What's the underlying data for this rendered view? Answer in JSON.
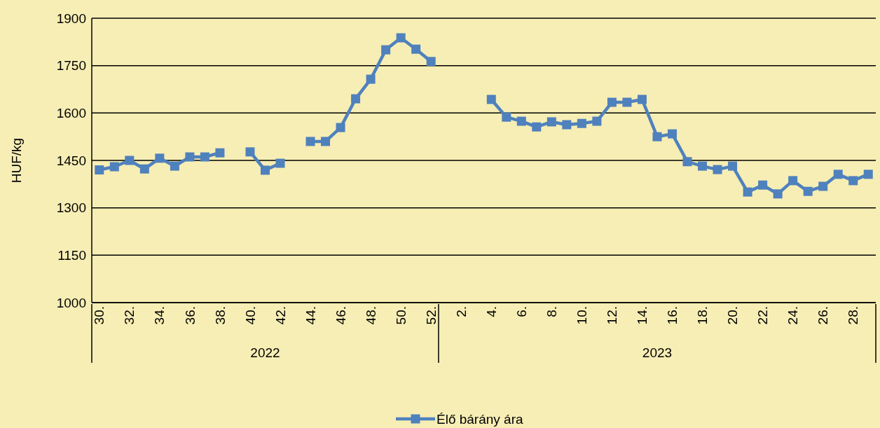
{
  "chart_data": {
    "type": "line",
    "ylabel": "HUF/kg",
    "categories": [
      "30.",
      null,
      "32.",
      null,
      "34.",
      null,
      "36.",
      null,
      "38.",
      null,
      "40.",
      null,
      "42.",
      null,
      "44.",
      null,
      "46.",
      null,
      "48.",
      null,
      "50.",
      null,
      "52.",
      null,
      "2.",
      null,
      "4.",
      null,
      "6.",
      null,
      "8.",
      null,
      "10.",
      null,
      "12.",
      null,
      "14.",
      null,
      "16.",
      null,
      "18.",
      null,
      "20.",
      null,
      "22.",
      null,
      "24.",
      null,
      "26.",
      null,
      "28.",
      null
    ],
    "series": [
      {
        "name": "Élő bárány ára",
        "color": "#4f81bd",
        "values": [
          1420,
          1430,
          1450,
          1423,
          1457,
          1432,
          1461,
          1461,
          1474,
          null,
          1477,
          1419,
          1441,
          null,
          1510,
          1510,
          1554,
          1645,
          1707,
          1800,
          1838,
          1802,
          1763,
          null,
          null,
          null,
          1643,
          1587,
          1574,
          1556,
          1572,
          1563,
          1567,
          1574,
          1634,
          1634,
          1643,
          1525,
          1534,
          1446,
          1432,
          1421,
          1432,
          1350,
          1372,
          1344,
          1386,
          1352,
          1368,
          1406,
          1386,
          1406
        ]
      }
    ],
    "annotations": [
      "2022",
      "2023"
    ],
    "ylim": [
      1000,
      1900
    ],
    "yticks": [
      1000,
      1150,
      1300,
      1450,
      1600,
      1750,
      1900
    ],
    "grid": "y",
    "legend": "bottom",
    "marker": "square",
    "line_style": "solid"
  }
}
